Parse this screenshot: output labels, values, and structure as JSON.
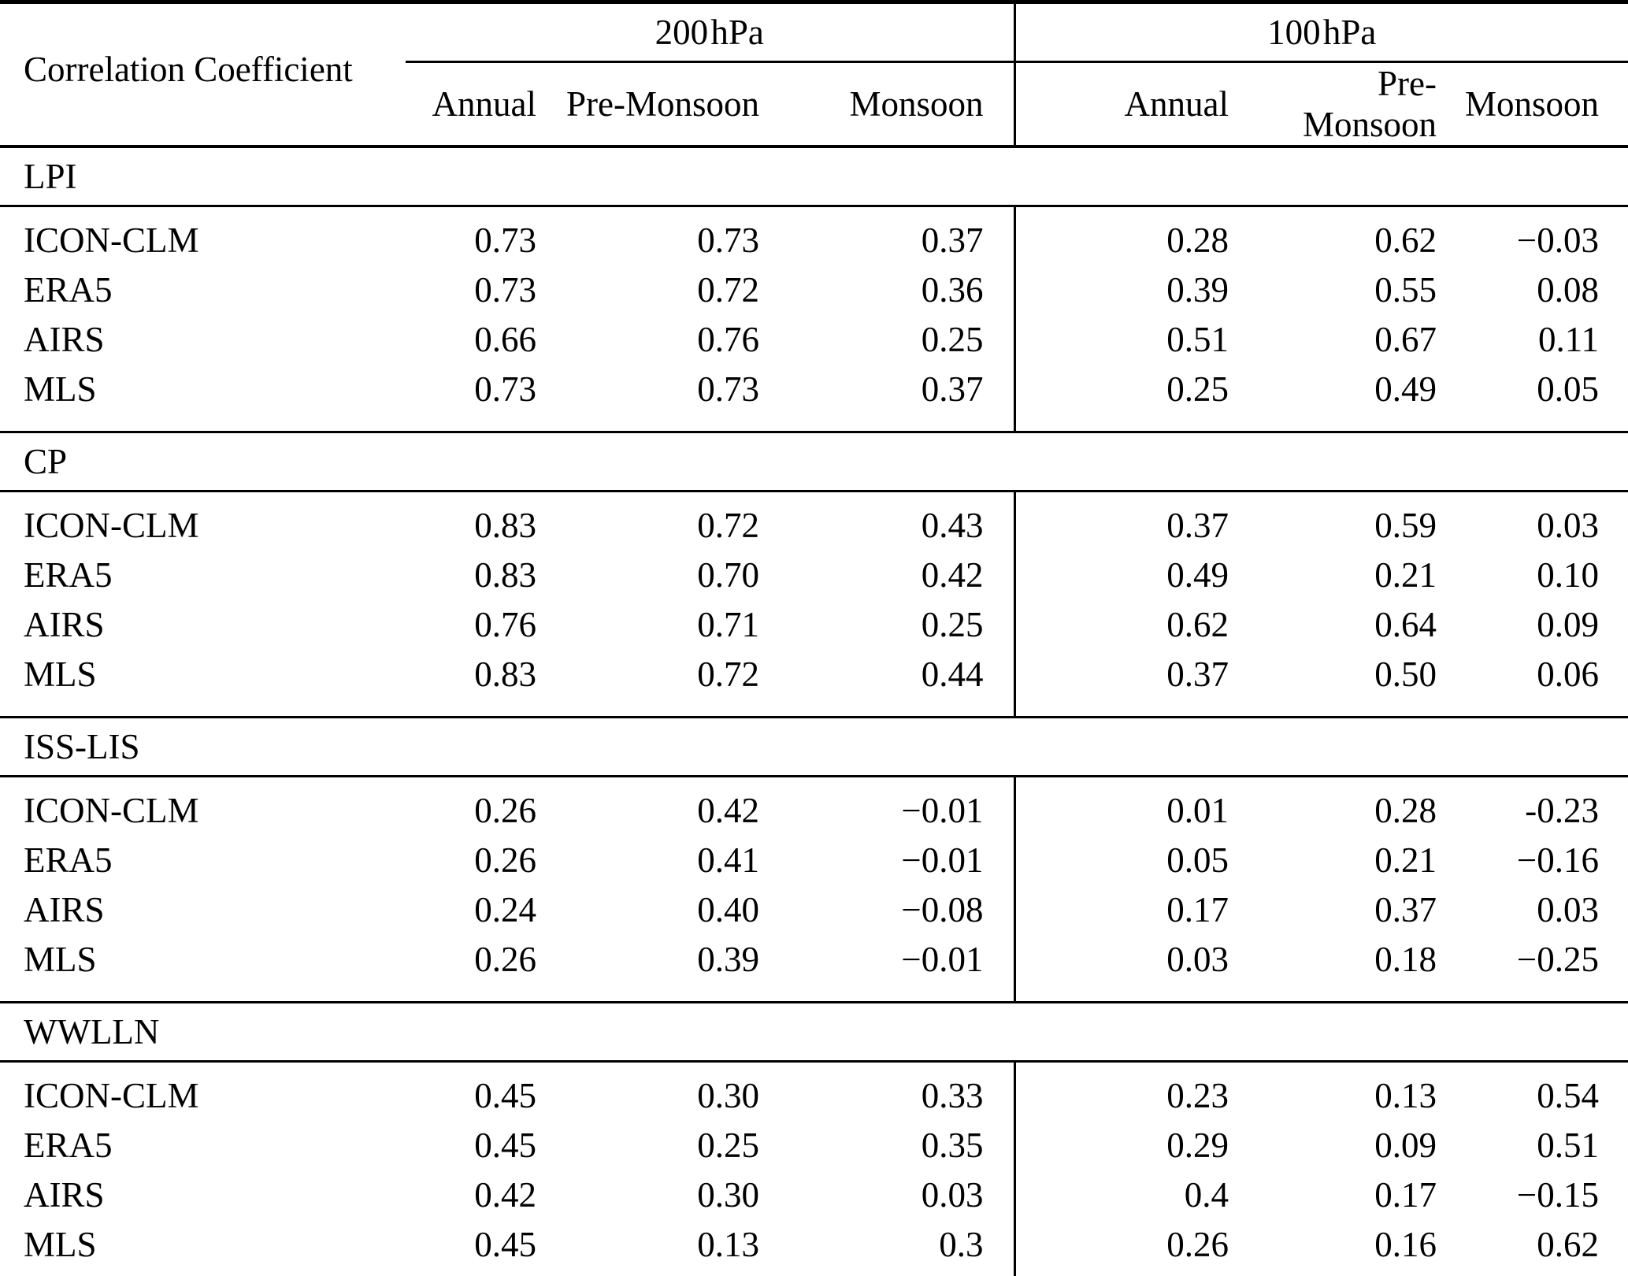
{
  "table": {
    "corner_header": "Correlation Coefficient",
    "groups": [
      {
        "label": "200 hPa"
      },
      {
        "label": "100 hPa"
      }
    ],
    "sub_headers": [
      "Annual",
      "Pre-Monsoon",
      "Monsoon",
      "Annual",
      "Pre-Monsoon",
      "Monsoon"
    ],
    "sections": [
      {
        "name": "LPI",
        "rows": [
          {
            "label": "ICON-CLM",
            "values": [
              "0.73",
              "0.73",
              "0.37",
              "0.28",
              "0.62",
              "−0.03"
            ]
          },
          {
            "label": "ERA5",
            "values": [
              "0.73",
              "0.72",
              "0.36",
              "0.39",
              "0.55",
              "0.08"
            ]
          },
          {
            "label": "AIRS",
            "values": [
              "0.66",
              "0.76",
              "0.25",
              "0.51",
              "0.67",
              "0.11"
            ]
          },
          {
            "label": "MLS",
            "values": [
              "0.73",
              "0.73",
              "0.37",
              "0.25",
              "0.49",
              "0.05"
            ]
          }
        ]
      },
      {
        "name": "CP",
        "rows": [
          {
            "label": "ICON-CLM",
            "values": [
              "0.83",
              "0.72",
              "0.43",
              "0.37",
              "0.59",
              "0.03"
            ]
          },
          {
            "label": "ERA5",
            "values": [
              "0.83",
              "0.70",
              "0.42",
              "0.49",
              "0.21",
              "0.10"
            ]
          },
          {
            "label": "AIRS",
            "values": [
              "0.76",
              "0.71",
              "0.25",
              "0.62",
              "0.64",
              "0.09"
            ]
          },
          {
            "label": "MLS",
            "values": [
              "0.83",
              "0.72",
              "0.44",
              "0.37",
              "0.50",
              "0.06"
            ]
          }
        ]
      },
      {
        "name": "ISS-LIS",
        "rows": [
          {
            "label": "ICON-CLM",
            "values": [
              "0.26",
              "0.42",
              "−0.01",
              "0.01",
              "0.28",
              "-0.23"
            ]
          },
          {
            "label": "ERA5",
            "values": [
              "0.26",
              "0.41",
              "−0.01",
              "0.05",
              "0.21",
              "−0.16"
            ]
          },
          {
            "label": "AIRS",
            "values": [
              "0.24",
              "0.40",
              "−0.08",
              "0.17",
              "0.37",
              "0.03"
            ]
          },
          {
            "label": "MLS",
            "values": [
              "0.26",
              "0.39",
              "−0.01",
              "0.03",
              "0.18",
              "−0.25"
            ]
          }
        ]
      },
      {
        "name": "WWLLN",
        "rows": [
          {
            "label": "ICON-CLM",
            "values": [
              "0.45",
              "0.30",
              "0.33",
              "0.23",
              "0.13",
              "0.54"
            ]
          },
          {
            "label": "ERA5",
            "values": [
              "0.45",
              "0.25",
              "0.35",
              "0.29",
              "0.09",
              "0.51"
            ]
          },
          {
            "label": "AIRS",
            "values": [
              "0.42",
              "0.30",
              "0.03",
              "0.4",
              "0.17",
              "−0.15"
            ]
          },
          {
            "label": "MLS",
            "values": [
              "0.45",
              "0.13",
              "0.3",
              "0.26",
              "0.16",
              "0.62"
            ]
          }
        ]
      }
    ]
  }
}
